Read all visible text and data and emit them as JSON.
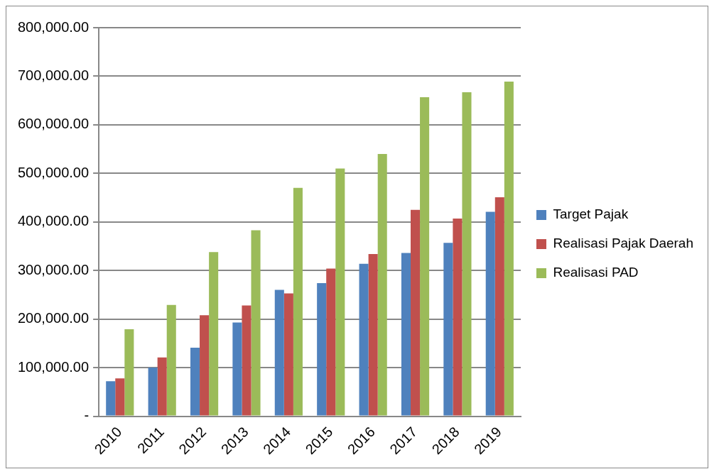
{
  "chart_data": {
    "type": "bar",
    "categories": [
      "2010",
      "2011",
      "2012",
      "2013",
      "2014",
      "2015",
      "2016",
      "2017",
      "2018",
      "2019"
    ],
    "series": [
      {
        "name": "Target Pajak",
        "color": "#4f81bd",
        "values": [
          72000,
          100000,
          141000,
          193000,
          260000,
          274000,
          314000,
          336000,
          357000,
          421000
        ]
      },
      {
        "name": "Realisasi Pajak Daerah",
        "color": "#c0504d",
        "values": [
          78000,
          121000,
          208000,
          228000,
          253000,
          304000,
          334000,
          425000,
          407000,
          451000
        ]
      },
      {
        "name": "Realisasi PAD",
        "color": "#9bbb59",
        "values": [
          179000,
          229000,
          338000,
          383000,
          470000,
          510000,
          540000,
          657000,
          667000,
          689000
        ]
      }
    ],
    "ylim": [
      0,
      800000
    ],
    "yticks": [
      {
        "value": 0,
        "label": "-"
      },
      {
        "value": 100000,
        "label": "100,000.00"
      },
      {
        "value": 200000,
        "label": "200,000.00"
      },
      {
        "value": 300000,
        "label": "300,000.00"
      },
      {
        "value": 400000,
        "label": "400,000.00"
      },
      {
        "value": 500000,
        "label": "500,000.00"
      },
      {
        "value": 600000,
        "label": "600,000.00"
      },
      {
        "value": 700000,
        "label": "700,000.00"
      },
      {
        "value": 800000,
        "label": "800,000.00"
      }
    ],
    "grid": "y",
    "legend": "right"
  }
}
